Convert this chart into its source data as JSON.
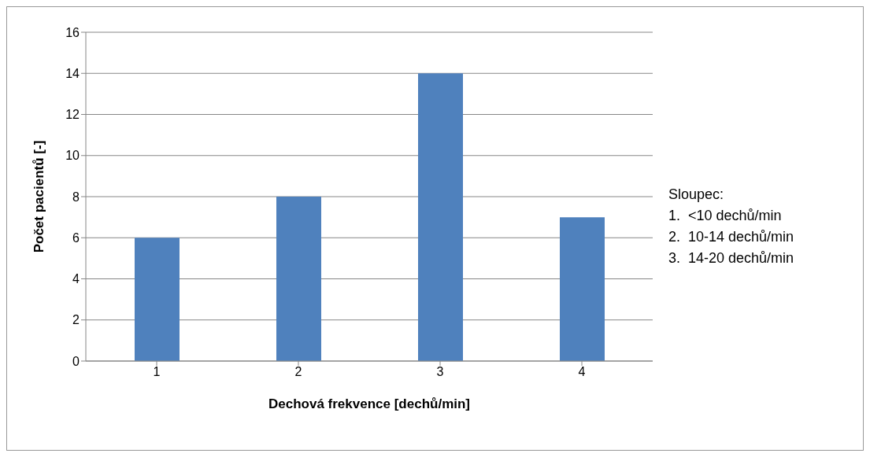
{
  "chart_data": {
    "type": "bar",
    "categories": [
      "1",
      "2",
      "3",
      "4"
    ],
    "values": [
      6,
      8,
      14,
      7
    ],
    "color": "#4f81bd",
    "xlabel": "Dechová frekvence [dechů/min]",
    "ylabel": "Počet pacientů [-]",
    "ylim": [
      0,
      16
    ],
    "yticks": [
      0,
      2,
      4,
      6,
      8,
      10,
      12,
      14,
      16
    ],
    "grid": "y",
    "annotations": [
      "Sloupec:",
      "1.  <10 dechů/min",
      "2.  10-14 dechů/min",
      "3.  14-20 dechů/min"
    ]
  }
}
